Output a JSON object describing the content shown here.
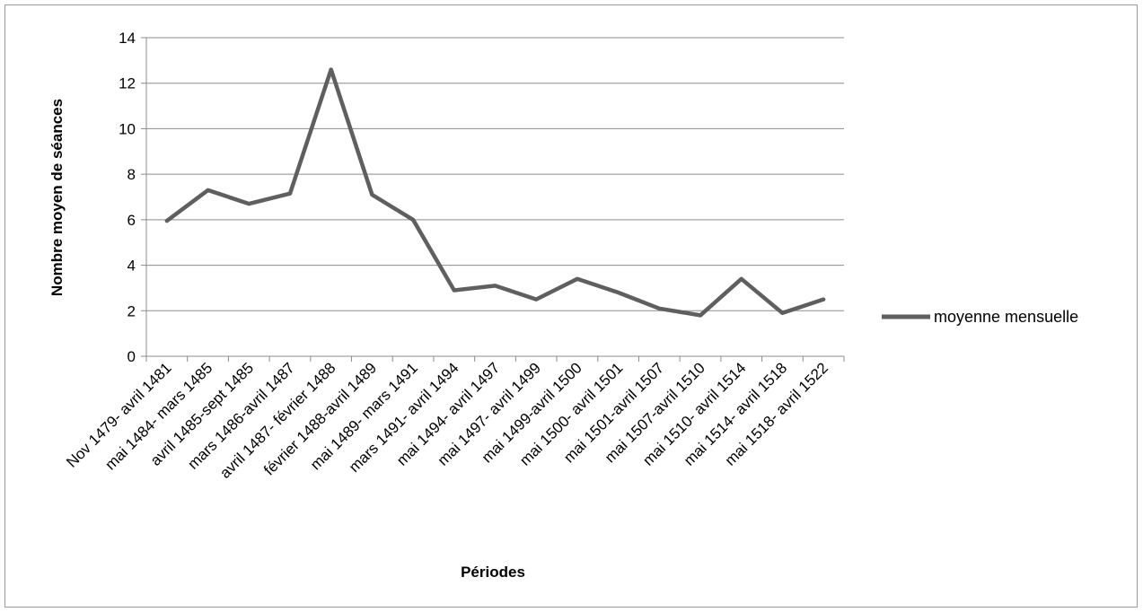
{
  "chart_data": {
    "type": "line",
    "xlabel": "Périodes",
    "ylabel": "Nombre moyen de séances",
    "ylim": [
      0,
      14
    ],
    "yticks": [
      0,
      2,
      4,
      6,
      8,
      10,
      12,
      14
    ],
    "grid": true,
    "legend_position": "right",
    "categories": [
      "Nov 1479- avril 1481",
      "mai 1484- mars 1485",
      "avril 1485-sept 1485",
      "mars 1486-avril 1487",
      "avril 1487- février 1488",
      "février 1488-avril 1489",
      "mai 1489- mars 1491",
      "mars 1491- avril 1494",
      "mai 1494- avril 1497",
      "mai 1497- avril 1499",
      "mai 1499-avril 1500",
      "mai 1500- avril 1501",
      "mai 1501-avril 1507",
      "mai 1507-avril 1510",
      "mai 1510- avril 1514",
      "mai 1514- avril 1518",
      "mai 1518- avril 1522"
    ],
    "series": [
      {
        "name": "moyenne mensuelle",
        "color": "#5f5f5f",
        "values": [
          5.95,
          7.3,
          6.7,
          7.15,
          12.6,
          7.1,
          6.0,
          2.9,
          3.1,
          2.5,
          3.4,
          2.8,
          2.1,
          1.8,
          3.4,
          1.9,
          2.5
        ]
      }
    ]
  }
}
